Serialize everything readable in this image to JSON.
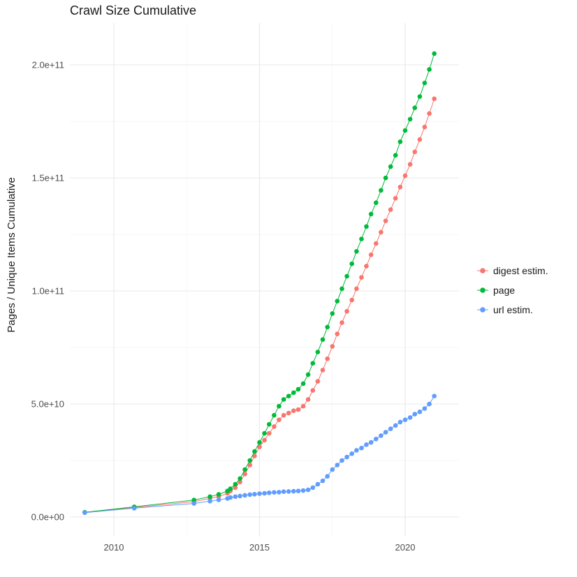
{
  "chart_data": {
    "type": "scatter",
    "title": "Crawl Size Cumulative",
    "xlabel": "",
    "ylabel": "Pages / Unique Items Cumulative",
    "legend_position": "right",
    "grid": true,
    "xlim": [
      2008.5,
      2021.85
    ],
    "ylim": [
      -8000000000,
      218000000000
    ],
    "x_ticks": [
      {
        "value": 2010,
        "label": "2010"
      },
      {
        "value": 2015,
        "label": "2015"
      },
      {
        "value": 2020,
        "label": "2020"
      }
    ],
    "y_ticks": [
      {
        "value": 0,
        "label": "0.0e+00"
      },
      {
        "value": 50000000000,
        "label": "5.0e+10"
      },
      {
        "value": 100000000000,
        "label": "1.0e+11"
      },
      {
        "value": 150000000000,
        "label": "1.5e+11"
      },
      {
        "value": 200000000000,
        "label": "2.0e+11"
      }
    ],
    "x_minor": [
      2012.5,
      2017.5
    ],
    "y_minor": [
      25000000000,
      75000000000,
      125000000000,
      175000000000
    ],
    "x": [
      2009.0,
      2010.7,
      2012.75,
      2013.3,
      2013.6,
      2013.9,
      2014.0,
      2014.17,
      2014.33,
      2014.5,
      2014.67,
      2014.83,
      2015.0,
      2015.17,
      2015.33,
      2015.5,
      2015.67,
      2015.83,
      2016.0,
      2016.17,
      2016.33,
      2016.5,
      2016.67,
      2016.83,
      2017.0,
      2017.17,
      2017.33,
      2017.5,
      2017.67,
      2017.83,
      2018.0,
      2018.17,
      2018.33,
      2018.5,
      2018.67,
      2018.83,
      2019.0,
      2019.17,
      2019.33,
      2019.5,
      2019.67,
      2019.83,
      2020.0,
      2020.17,
      2020.33,
      2020.5,
      2020.67,
      2020.83,
      2021.0
    ],
    "series": [
      {
        "name": "digest estim.",
        "color": "#F8766D",
        "values": [
          2000000000.0,
          4200000000.0,
          6800000000.0,
          8200000000.0,
          9000000000.0,
          10500000000.0,
          11500000000.0,
          13000000000.0,
          15500000000.0,
          19000000000.0,
          23000000000.0,
          27000000000.0,
          31000000000.0,
          34000000000.0,
          37000000000.0,
          40000000000.0,
          43000000000.0,
          45000000000.0,
          46000000000.0,
          47000000000.0,
          47500000000.0,
          49000000000.0,
          52000000000.0,
          56000000000.0,
          60000000000.0,
          65000000000.0,
          70000000000.0,
          75500000000.0,
          81000000000.0,
          86000000000.0,
          91000000000.0,
          96000000000.0,
          101000000000.0,
          106000000000.0,
          111000000000.0,
          116000000000.0,
          121000000000.0,
          126000000000.0,
          131000000000.0,
          136000000000.0,
          141000000000.0,
          146000000000.0,
          151000000000.0,
          156000000000.0,
          161500000000.0,
          167000000000.0,
          172500000000.0,
          178500000000.0,
          185000000000.0
        ]
      },
      {
        "name": "page",
        "color": "#00BA38",
        "values": [
          2100000000.0,
          4500000000.0,
          7500000000.0,
          9000000000.0,
          10000000000.0,
          11500000000.0,
          12500000000.0,
          14500000000.0,
          17000000000.0,
          21000000000.0,
          25000000000.0,
          29000000000.0,
          33000000000.0,
          37000000000.0,
          41000000000.0,
          45000000000.0,
          49000000000.0,
          52000000000.0,
          53500000000.0,
          55000000000.0,
          56500000000.0,
          59000000000.0,
          63000000000.0,
          68000000000.0,
          73000000000.0,
          78500000000.0,
          84000000000.0,
          90000000000.0,
          95500000000.0,
          101000000000.0,
          106500000000.0,
          112000000000.0,
          117500000000.0,
          123000000000.0,
          128500000000.0,
          134000000000.0,
          139000000000.0,
          144500000000.0,
          150000000000.0,
          155000000000.0,
          160000000000.0,
          166000000000.0,
          171000000000.0,
          176000000000.0,
          181000000000.0,
          186000000000.0,
          192000000000.0,
          198000000000.0,
          205000000000.0
        ]
      },
      {
        "name": "url estim.",
        "color": "#619CFF",
        "values": [
          1900000000.0,
          3900000000.0,
          6000000000.0,
          7000000000.0,
          7600000000.0,
          8200000000.0,
          8600000000.0,
          9000000000.0,
          9300000000.0,
          9600000000.0,
          9900000000.0,
          10100000000.0,
          10300000000.0,
          10500000000.0,
          10700000000.0,
          10900000000.0,
          11000000000.0,
          11200000000.0,
          11300000000.0,
          11400000000.0,
          11500000000.0,
          11700000000.0,
          12000000000.0,
          13000000000.0,
          14500000000.0,
          16000000000.0,
          18000000000.0,
          21000000000.0,
          23000000000.0,
          25000000000.0,
          26500000000.0,
          28000000000.0,
          29500000000.0,
          30500000000.0,
          32000000000.0,
          33000000000.0,
          34500000000.0,
          36000000000.0,
          37500000000.0,
          39000000000.0,
          40500000000.0,
          42000000000.0,
          43000000000.0,
          44000000000.0,
          45500000000.0,
          46500000000.0,
          48000000000.0,
          50000000000.0,
          53500000000.0
        ]
      }
    ],
    "style": {
      "grid_major_color": "#e8e8e8",
      "grid_minor_color": "#f4f4f4",
      "tick_label_color": "#4d4d4d",
      "point_radius": 3.3
    }
  }
}
